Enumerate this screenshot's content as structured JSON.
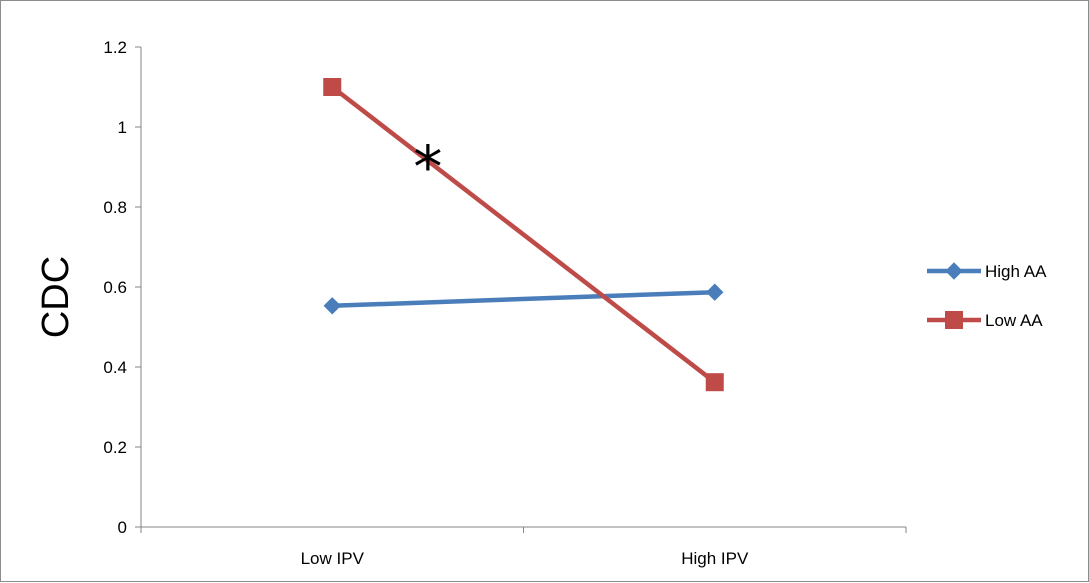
{
  "chart_data": {
    "type": "line",
    "title": "",
    "xlabel": "",
    "ylabel": "CDC",
    "categories": [
      "Low IPV",
      "High IPV"
    ],
    "ylim": [
      0,
      1.2
    ],
    "yticks": [
      "0",
      "0.2",
      "0.4",
      "0.6",
      "0.8",
      "1",
      "1.2"
    ],
    "grid": false,
    "legend_position": "right",
    "series": [
      {
        "name": "High AA",
        "values": [
          0.553,
          0.587
        ],
        "color": "#4a7ebb",
        "marker": "diamond"
      },
      {
        "name": "Low AA",
        "values": [
          1.1,
          0.362
        ],
        "color": "#be4b48",
        "marker": "square"
      }
    ],
    "annotations": [
      {
        "text": "*",
        "x_category_position": 0.5,
        "y": 0.9
      }
    ]
  }
}
